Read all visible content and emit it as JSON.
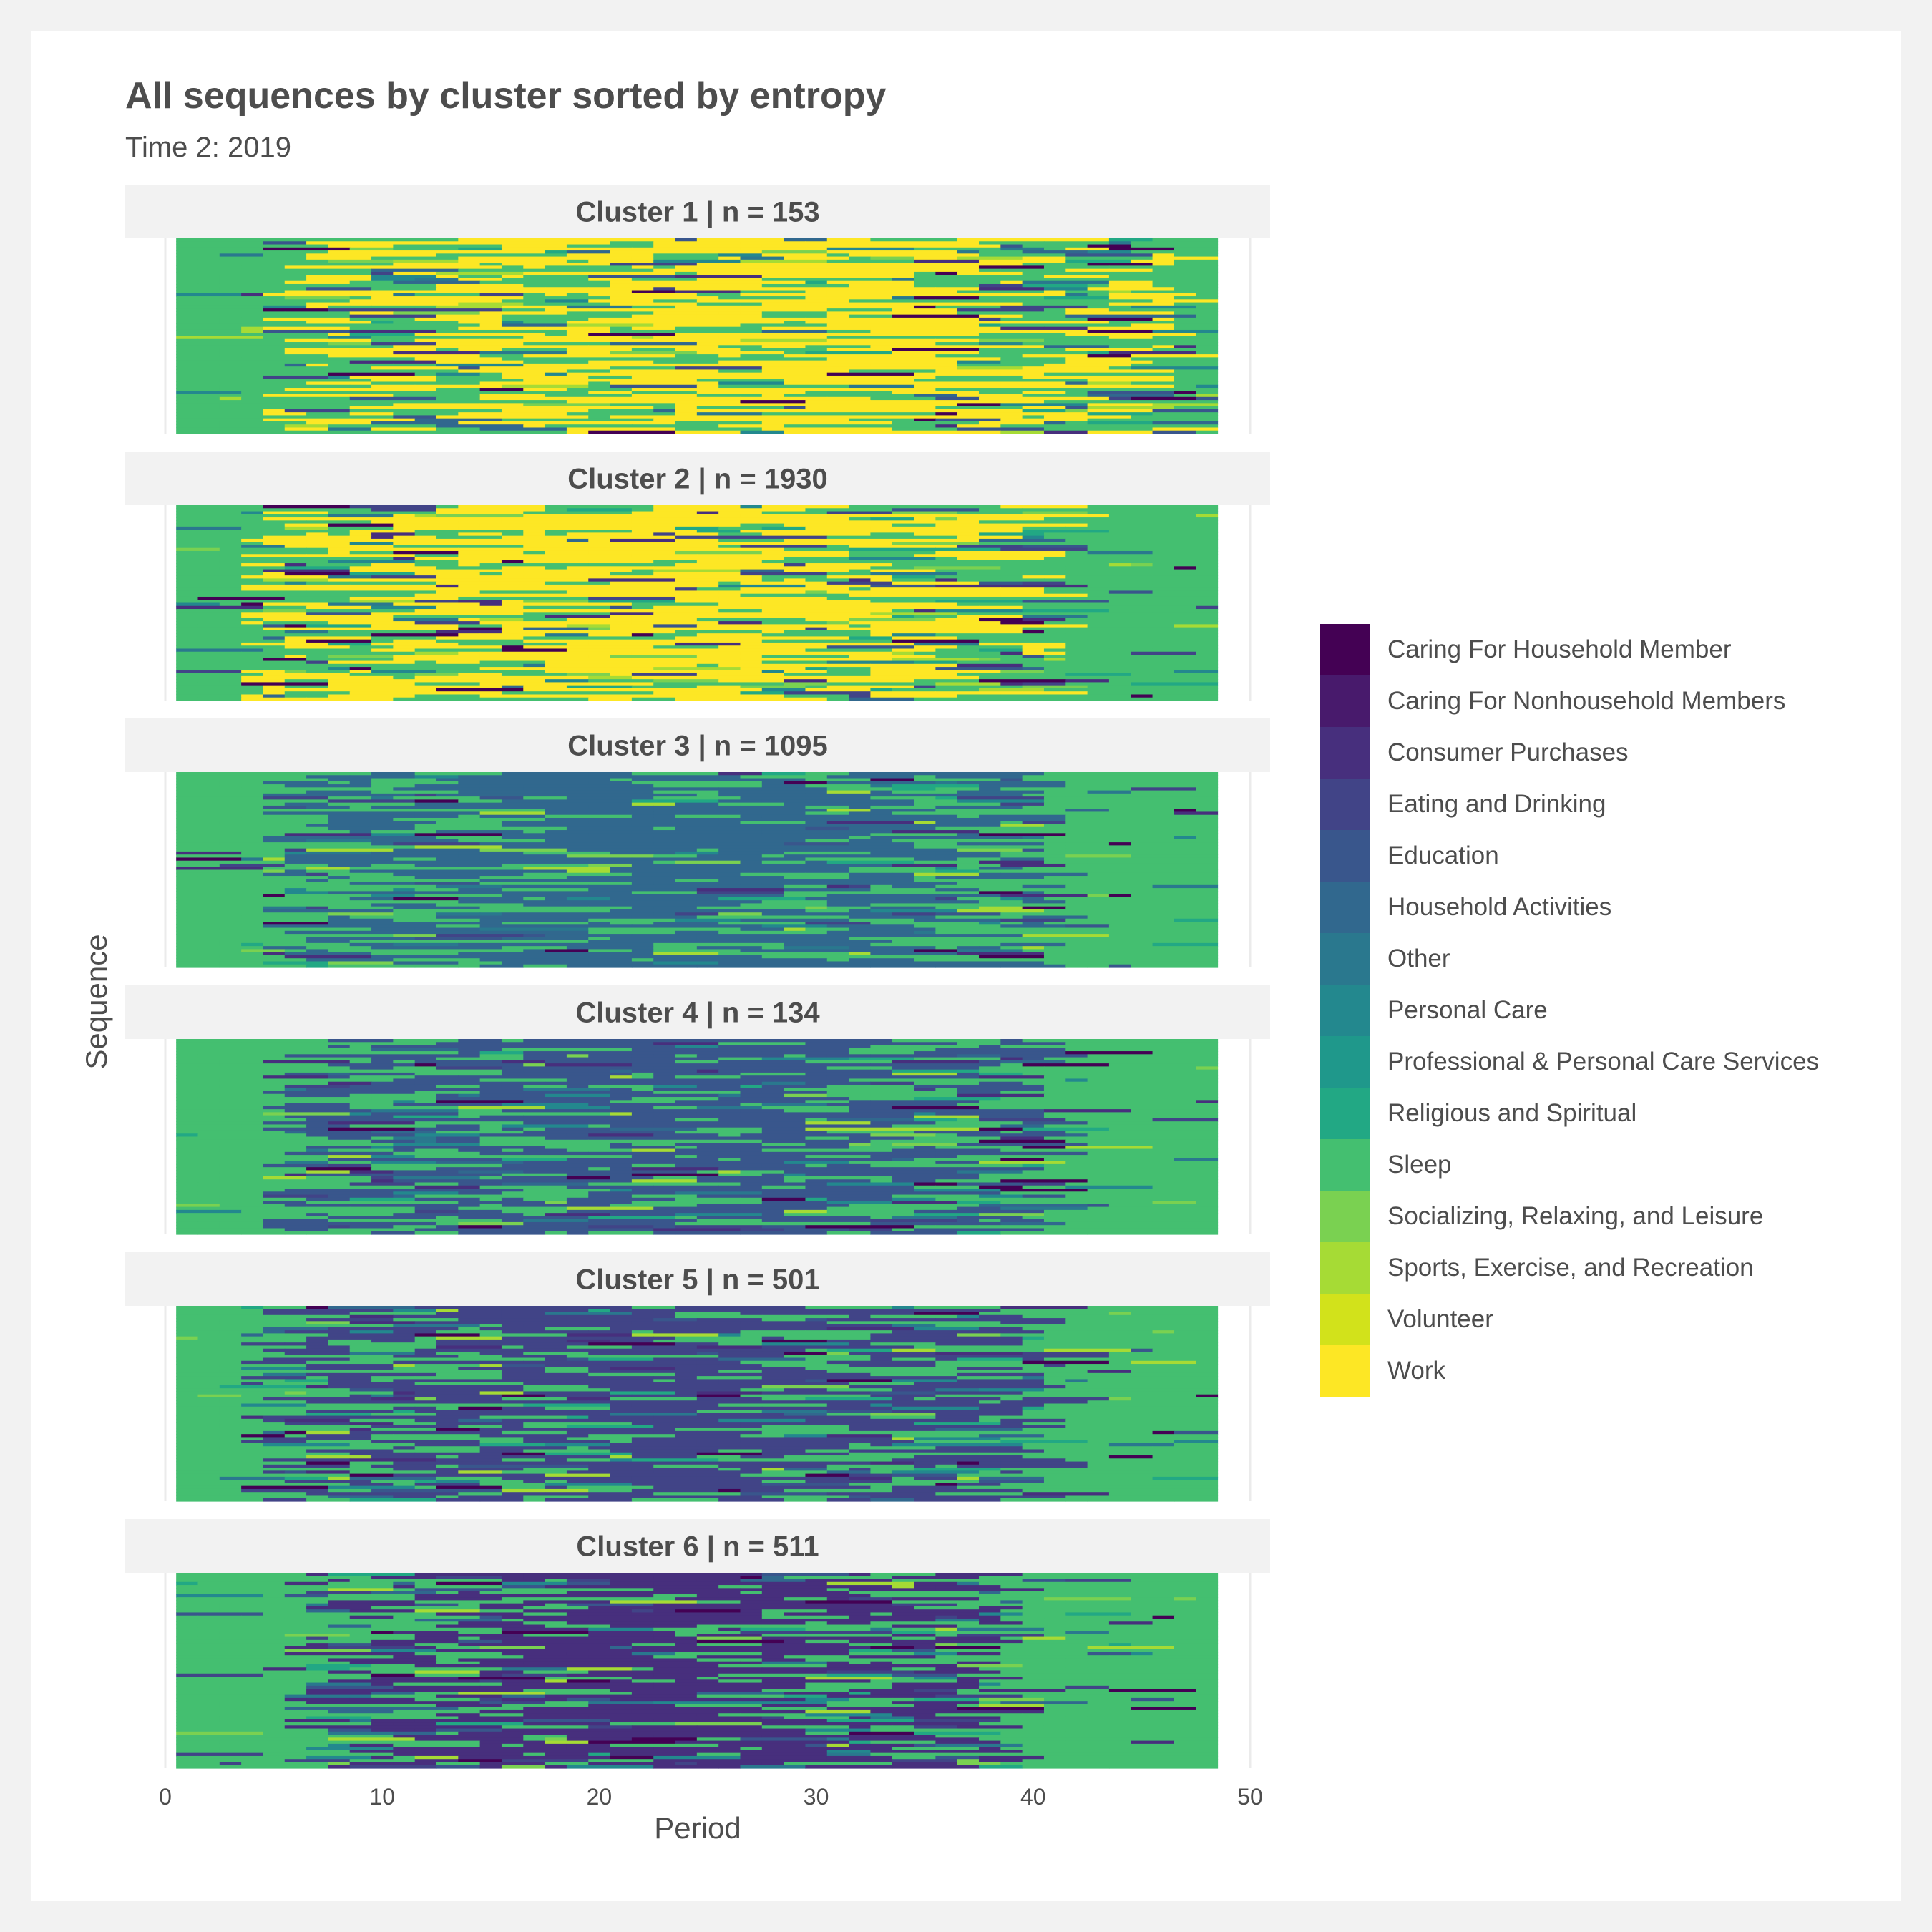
{
  "chart_data": {
    "type": "heatmap",
    "title": "All sequences by cluster sorted by entropy",
    "subtitle": "Time 2: 2019",
    "xlabel": "Period",
    "ylabel": "Sequence",
    "xlim": [
      0,
      50
    ],
    "x_ticks": [
      0,
      10,
      20,
      30,
      40,
      50
    ],
    "periods": [
      1,
      48
    ],
    "grid": true,
    "legend_position": "right",
    "states": [
      {
        "name": "Caring For Household Member",
        "color": "#440154"
      },
      {
        "name": "Caring For Nonhousehold Members",
        "color": "#481A6C"
      },
      {
        "name": "Consumer Purchases",
        "color": "#472F7D"
      },
      {
        "name": "Eating and Drinking",
        "color": "#414487"
      },
      {
        "name": "Education",
        "color": "#39568C"
      },
      {
        "name": "Household Activities",
        "color": "#31688E"
      },
      {
        "name": "Other",
        "color": "#2A788E"
      },
      {
        "name": "Personal Care",
        "color": "#23888E"
      },
      {
        "name": "Professional & Personal Care Services",
        "color": "#1F988B"
      },
      {
        "name": "Religious and Spiritual",
        "color": "#22A884"
      },
      {
        "name": "Sleep",
        "color": "#44BF70"
      },
      {
        "name": "Socializing, Relaxing, and Leisure",
        "color": "#7AD151"
      },
      {
        "name": "Sports, Exercise, and Recreation",
        "color": "#A6DB35"
      },
      {
        "name": "Volunteer",
        "color": "#D2E21B"
      },
      {
        "name": "Work",
        "color": "#FDE725"
      }
    ],
    "panels": [
      {
        "strip": "Cluster 1  | n =  153",
        "n": 153,
        "dominant": "Work",
        "active_periods": [
          5,
          46
        ]
      },
      {
        "strip": "Cluster 2  | n =  1930",
        "n": 1930,
        "dominant": "Work",
        "active_periods": [
          4,
          40
        ]
      },
      {
        "strip": "Cluster 3  | n =  1095",
        "n": 1095,
        "dominant": "Household Activities",
        "active_periods": [
          5,
          40
        ]
      },
      {
        "strip": "Cluster 4  | n =  134",
        "n": 134,
        "dominant": "Education",
        "active_periods": [
          5,
          40
        ]
      },
      {
        "strip": "Cluster 5  | n =  501",
        "n": 501,
        "dominant": "Eating and Drinking",
        "active_periods": [
          4,
          40
        ]
      },
      {
        "strip": "Cluster 6  | n =  511",
        "n": 511,
        "dominant": "Consumer Purchases",
        "active_periods": [
          6,
          38
        ]
      }
    ]
  }
}
